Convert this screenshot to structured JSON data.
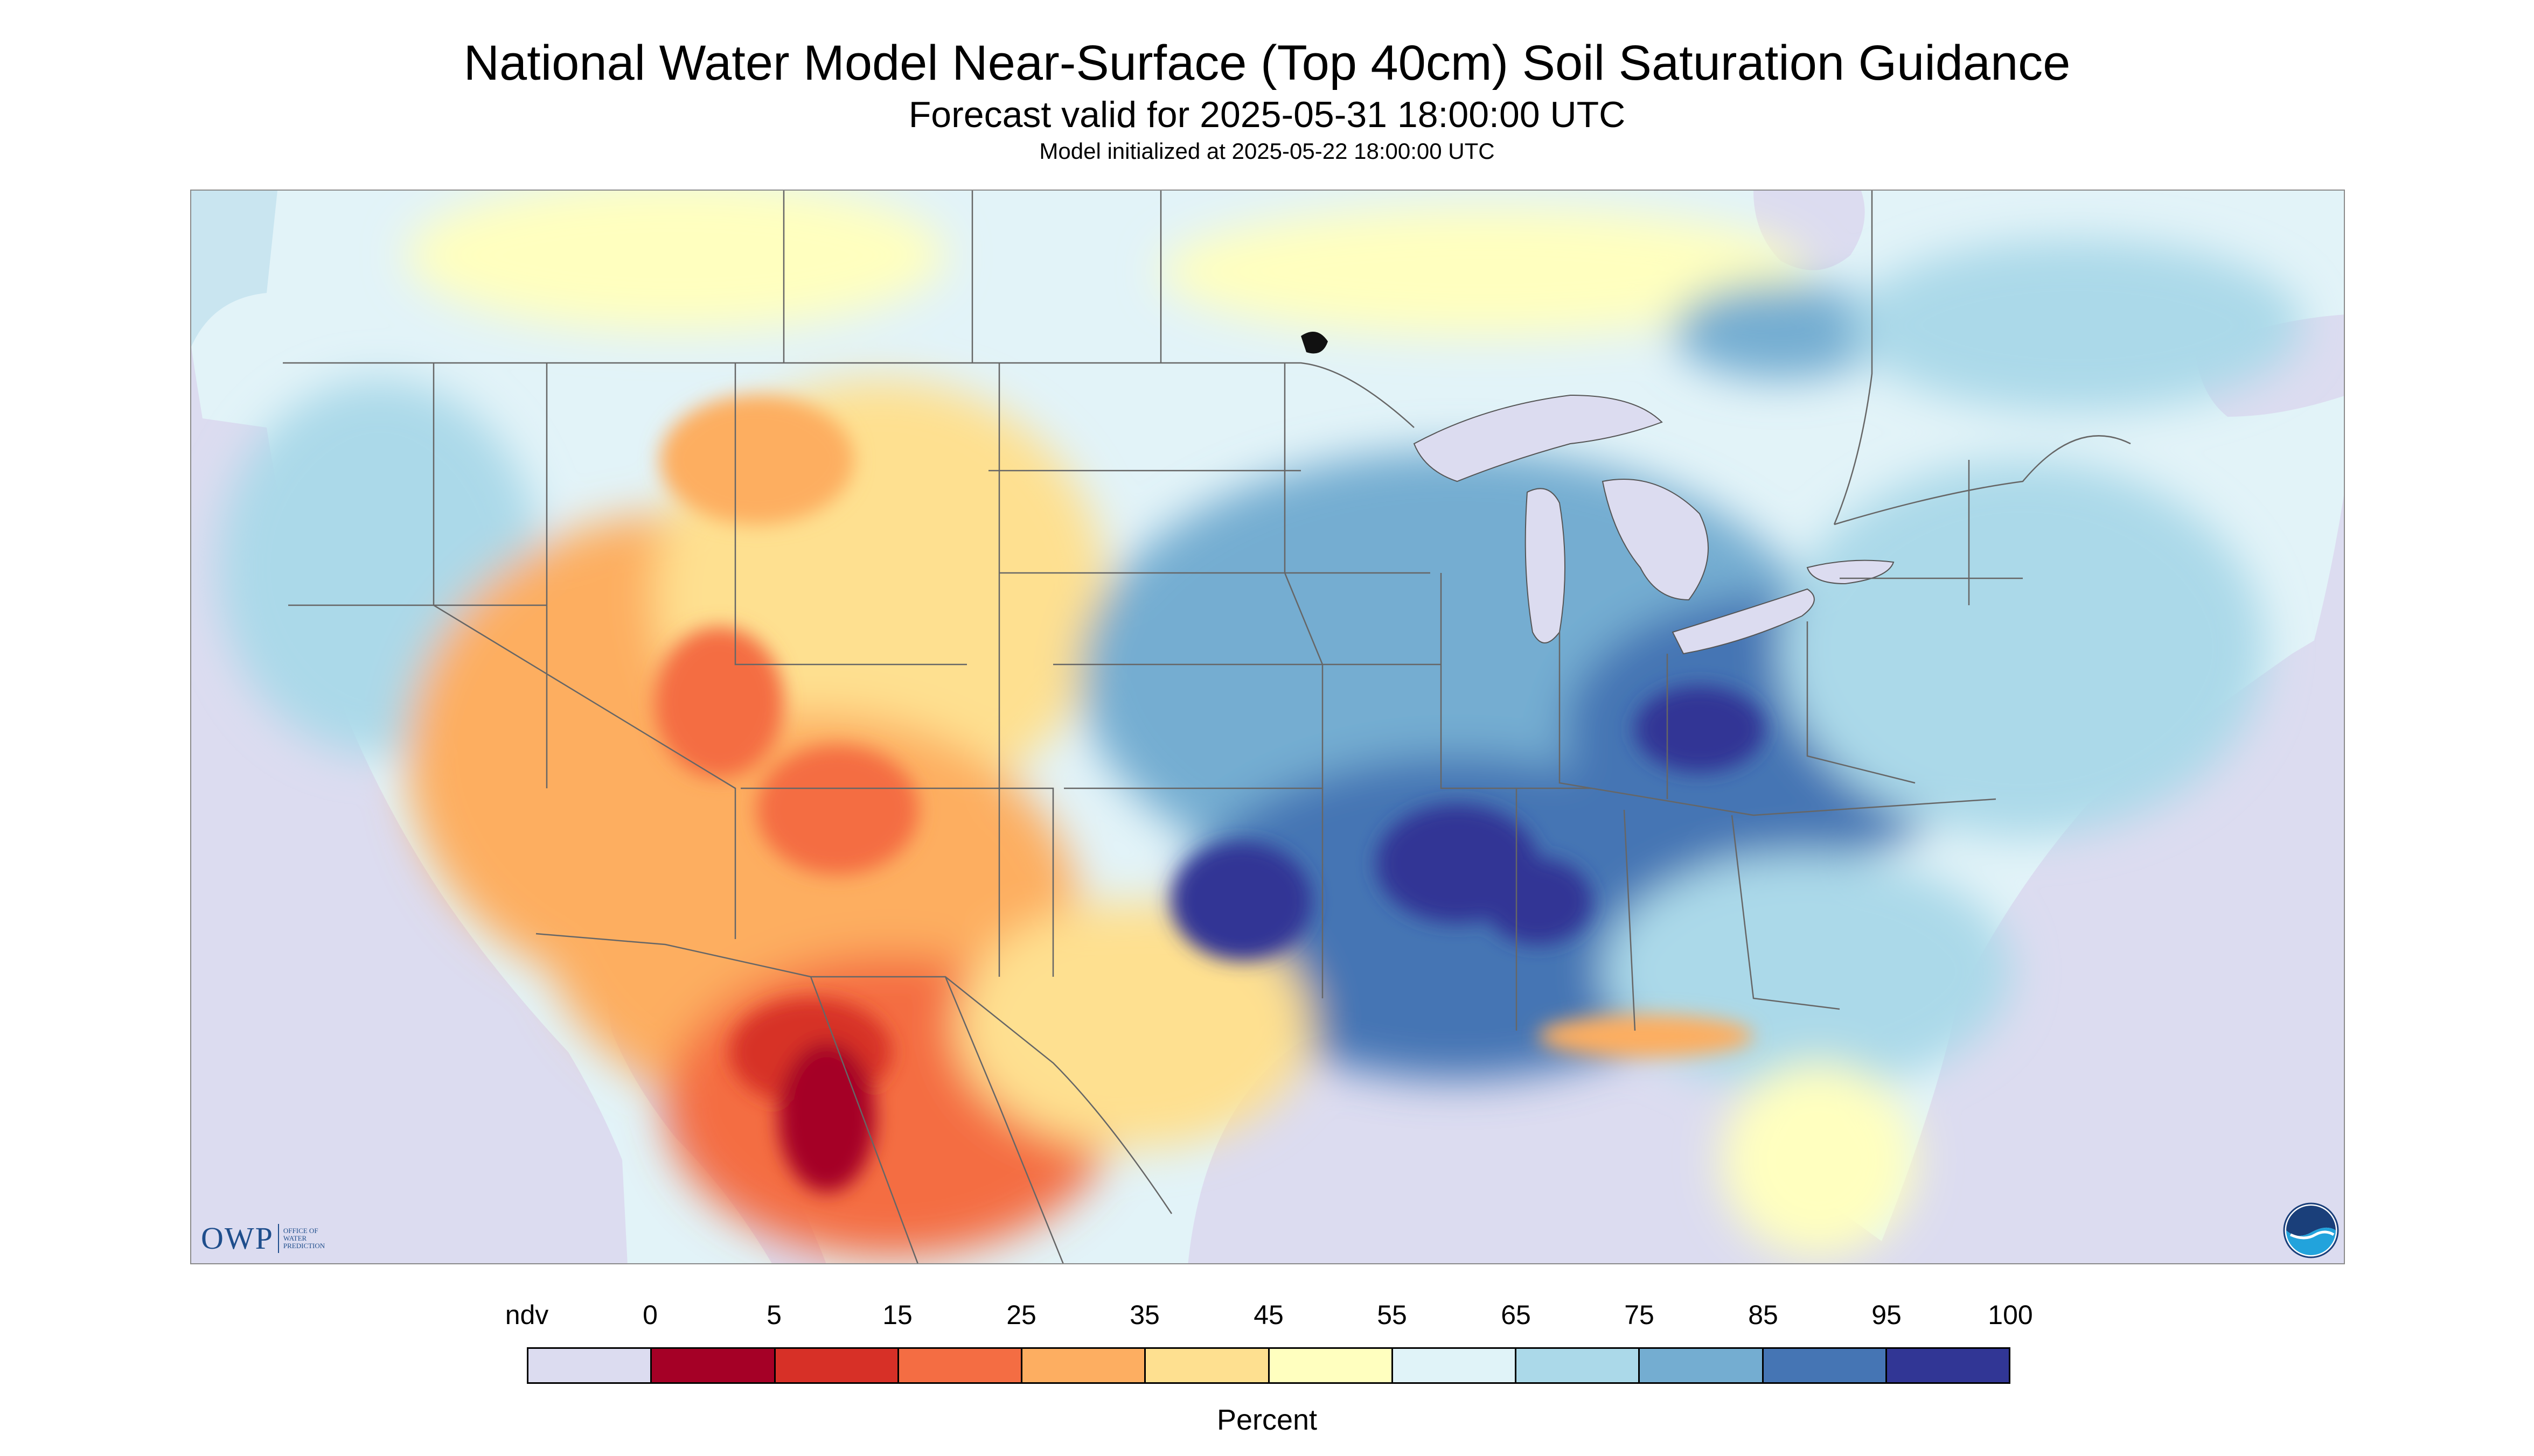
{
  "header": {
    "title": "National Water Model Near-Surface (Top 40cm) Soil Saturation Guidance",
    "subtitle": "Forecast valid for 2025-05-31 18:00:00 UTC",
    "init": "Model initialized at 2025-05-22 18:00:00 UTC"
  },
  "map": {
    "ocean_color": "#dcdcf0",
    "land_color": "#e2f3f8",
    "boundary_color": "#666666"
  },
  "logos": {
    "owp_mark": "OWP",
    "owp_words": [
      "OFFICE OF",
      "WATER",
      "PREDICTION"
    ]
  },
  "legend": {
    "labels": [
      "ndv",
      "0",
      "5",
      "15",
      "25",
      "35",
      "45",
      "55",
      "65",
      "75",
      "85",
      "95",
      "100"
    ],
    "colors": [
      "#dcdcf0",
      "#a50026",
      "#d73027",
      "#f46d43",
      "#fdae61",
      "#fee090",
      "#ffffbf",
      "#e0f3f8",
      "#abd9e9",
      "#74add1",
      "#4575b4",
      "#313695"
    ],
    "unit": "Percent"
  }
}
